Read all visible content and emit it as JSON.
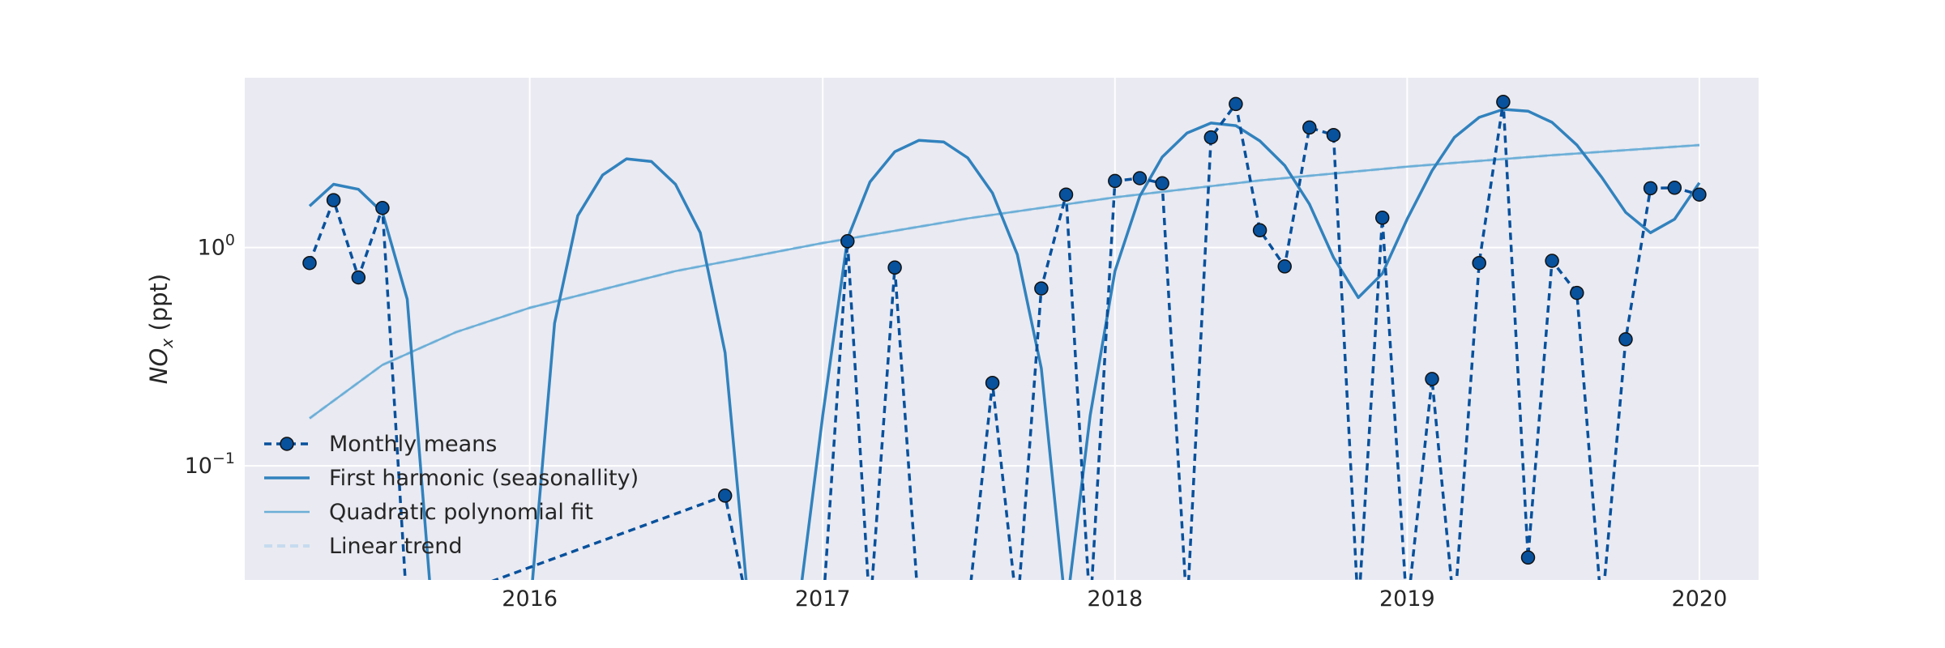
{
  "chart_data": {
    "type": "line",
    "title": "",
    "xlabel": "",
    "ylabel": "NOx (ppt)",
    "ylabel_main": "NO",
    "ylabel_sub": "x",
    "ylabel_unit": " (ppt)",
    "yscale": "log",
    "xlim": [
      "2015-01-10",
      "2020-03-15"
    ],
    "ylim": [
      0.03,
      6.0
    ],
    "grid": true,
    "legend_position": "lower-left",
    "x_ticks": [
      {
        "date": "2016-01-01",
        "label": "2016"
      },
      {
        "date": "2017-01-01",
        "label": "2017"
      },
      {
        "date": "2018-01-01",
        "label": "2018"
      },
      {
        "date": "2019-01-01",
        "label": "2019"
      },
      {
        "date": "2020-01-01",
        "label": "2020"
      }
    ],
    "y_ticks": [
      {
        "value": 1.0,
        "base": "10",
        "exp": "0"
      },
      {
        "value": 0.1,
        "base": "10",
        "exp": "−1"
      }
    ],
    "colors": {
      "monthly": "#08519c",
      "harmonic": "#3182bd",
      "quadratic": "#6baed6",
      "trend": "#c6dbef",
      "background": "#eaeaf2",
      "grid": "#ffffff"
    },
    "series": [
      {
        "name": "Monthly means",
        "style": "dashed-markers",
        "points": [
          {
            "x": "2015-04-01",
            "y": 0.85
          },
          {
            "x": "2015-05-01",
            "y": 1.65
          },
          {
            "x": "2015-06-01",
            "y": 0.73
          },
          {
            "x": "2015-07-01",
            "y": 1.52
          },
          {
            "x": "2015-08-01",
            "y": null
          },
          {
            "x": "2016-09-01",
            "y": 0.073
          },
          {
            "x": "2016-10-01",
            "y": null
          },
          {
            "x": "2017-01-01",
            "y": null
          },
          {
            "x": "2017-02-01",
            "y": 1.07
          },
          {
            "x": "2017-03-01",
            "y": null
          },
          {
            "x": "2017-04-01",
            "y": 0.81
          },
          {
            "x": "2017-05-01",
            "y": null
          },
          {
            "x": "2017-07-01",
            "y": null
          },
          {
            "x": "2017-08-01",
            "y": 0.24
          },
          {
            "x": "2017-09-01",
            "y": null
          },
          {
            "x": "2017-10-01",
            "y": 0.65
          },
          {
            "x": "2017-11-01",
            "y": 1.75
          },
          {
            "x": "2017-12-01",
            "y": null
          },
          {
            "x": "2018-01-01",
            "y": 2.02
          },
          {
            "x": "2018-02-01",
            "y": 2.08
          },
          {
            "x": "2018-03-01",
            "y": 1.97
          },
          {
            "x": "2018-04-01",
            "y": null
          },
          {
            "x": "2018-05-01",
            "y": 3.2
          },
          {
            "x": "2018-06-01",
            "y": 4.55
          },
          {
            "x": "2018-07-01",
            "y": 1.2
          },
          {
            "x": "2018-08-01",
            "y": 0.82
          },
          {
            "x": "2018-09-01",
            "y": 3.55
          },
          {
            "x": "2018-10-01",
            "y": 3.28
          },
          {
            "x": "2018-11-01",
            "y": null
          },
          {
            "x": "2018-12-01",
            "y": 1.37
          },
          {
            "x": "2019-01-01",
            "y": null
          },
          {
            "x": "2019-02-01",
            "y": 0.25
          },
          {
            "x": "2019-03-01",
            "y": null
          },
          {
            "x": "2019-04-01",
            "y": 0.85
          },
          {
            "x": "2019-05-01",
            "y": 4.65
          },
          {
            "x": "2019-06-01",
            "y": 0.038
          },
          {
            "x": "2019-07-01",
            "y": 0.87
          },
          {
            "x": "2019-08-01",
            "y": 0.62
          },
          {
            "x": "2019-09-01",
            "y": null
          },
          {
            "x": "2019-10-01",
            "y": 0.38
          },
          {
            "x": "2019-11-01",
            "y": 1.87
          },
          {
            "x": "2019-12-01",
            "y": 1.88
          },
          {
            "x": "2020-01-01",
            "y": 1.75
          }
        ]
      },
      {
        "name": "First harmonic (seasonallity)",
        "style": "solid",
        "points": [
          {
            "x": "2015-04-01",
            "y": 1.55
          },
          {
            "x": "2015-05-01",
            "y": 1.95
          },
          {
            "x": "2015-06-01",
            "y": 1.85
          },
          {
            "x": "2015-07-01",
            "y": 1.45
          },
          {
            "x": "2015-08-01",
            "y": 0.58
          },
          {
            "x": "2015-09-01",
            "y": null
          },
          {
            "x": "2016-01-01",
            "y": null
          },
          {
            "x": "2016-02-01",
            "y": 0.45
          },
          {
            "x": "2016-03-01",
            "y": 1.4
          },
          {
            "x": "2016-04-01",
            "y": 2.15
          },
          {
            "x": "2016-05-01",
            "y": 2.55
          },
          {
            "x": "2016-06-01",
            "y": 2.48
          },
          {
            "x": "2016-07-01",
            "y": 1.95
          },
          {
            "x": "2016-08-01",
            "y": 1.17
          },
          {
            "x": "2016-09-01",
            "y": 0.33
          },
          {
            "x": "2016-10-01",
            "y": null
          },
          {
            "x": "2016-12-01",
            "y": null
          },
          {
            "x": "2017-01-01",
            "y": 0.17
          },
          {
            "x": "2017-02-01",
            "y": 1.1
          },
          {
            "x": "2017-03-01",
            "y": 2.0
          },
          {
            "x": "2017-04-01",
            "y": 2.75
          },
          {
            "x": "2017-05-01",
            "y": 3.1
          },
          {
            "x": "2017-06-01",
            "y": 3.05
          },
          {
            "x": "2017-07-01",
            "y": 2.58
          },
          {
            "x": "2017-08-01",
            "y": 1.78
          },
          {
            "x": "2017-09-01",
            "y": 0.93
          },
          {
            "x": "2017-10-01",
            "y": 0.28
          },
          {
            "x": "2017-11-01",
            "y": null
          },
          {
            "x": "2017-12-01",
            "y": 0.17
          },
          {
            "x": "2018-01-01",
            "y": 0.78
          },
          {
            "x": "2018-02-01",
            "y": 1.72
          },
          {
            "x": "2018-03-01",
            "y": 2.6
          },
          {
            "x": "2018-04-01",
            "y": 3.35
          },
          {
            "x": "2018-05-01",
            "y": 3.72
          },
          {
            "x": "2018-06-01",
            "y": 3.62
          },
          {
            "x": "2018-07-01",
            "y": 3.08
          },
          {
            "x": "2018-08-01",
            "y": 2.38
          },
          {
            "x": "2018-09-01",
            "y": 1.58
          },
          {
            "x": "2018-10-01",
            "y": 0.9
          },
          {
            "x": "2018-11-01",
            "y": 0.59
          },
          {
            "x": "2018-12-01",
            "y": 0.76
          },
          {
            "x": "2019-01-01",
            "y": 1.35
          },
          {
            "x": "2019-02-01",
            "y": 2.25
          },
          {
            "x": "2019-03-01",
            "y": 3.2
          },
          {
            "x": "2019-04-01",
            "y": 3.95
          },
          {
            "x": "2019-05-01",
            "y": 4.3
          },
          {
            "x": "2019-06-01",
            "y": 4.22
          },
          {
            "x": "2019-07-01",
            "y": 3.75
          },
          {
            "x": "2019-08-01",
            "y": 2.95
          },
          {
            "x": "2019-09-01",
            "y": 2.1
          },
          {
            "x": "2019-10-01",
            "y": 1.45
          },
          {
            "x": "2019-11-01",
            "y": 1.17
          },
          {
            "x": "2019-12-01",
            "y": 1.35
          },
          {
            "x": "2020-01-01",
            "y": 1.98
          }
        ]
      },
      {
        "name": "Quadratic polynomial fit",
        "style": "solid",
        "points": [
          {
            "x": "2015-04-01",
            "y": 0.165
          },
          {
            "x": "2015-07-01",
            "y": 0.29
          },
          {
            "x": "2015-10-01",
            "y": 0.41
          },
          {
            "x": "2016-01-01",
            "y": 0.53
          },
          {
            "x": "2016-07-01",
            "y": 0.78
          },
          {
            "x": "2017-01-01",
            "y": 1.05
          },
          {
            "x": "2017-07-01",
            "y": 1.36
          },
          {
            "x": "2018-01-01",
            "y": 1.7
          },
          {
            "x": "2018-07-01",
            "y": 2.03
          },
          {
            "x": "2019-01-01",
            "y": 2.35
          },
          {
            "x": "2019-07-01",
            "y": 2.65
          },
          {
            "x": "2020-01-01",
            "y": 2.95
          }
        ]
      },
      {
        "name": "Linear trend",
        "style": "dashed",
        "points": [
          {
            "x": "2015-04-01",
            "y": 0.165
          },
          {
            "x": "2015-07-01",
            "y": 0.29
          },
          {
            "x": "2015-10-01",
            "y": 0.41
          },
          {
            "x": "2016-01-01",
            "y": 0.53
          },
          {
            "x": "2016-07-01",
            "y": 0.78
          },
          {
            "x": "2017-01-01",
            "y": 1.05
          },
          {
            "x": "2017-07-01",
            "y": 1.36
          },
          {
            "x": "2018-01-01",
            "y": 1.7
          },
          {
            "x": "2018-07-01",
            "y": 2.03
          },
          {
            "x": "2019-01-01",
            "y": 2.35
          },
          {
            "x": "2019-07-01",
            "y": 2.65
          },
          {
            "x": "2020-01-01",
            "y": 2.95
          }
        ]
      }
    ]
  }
}
